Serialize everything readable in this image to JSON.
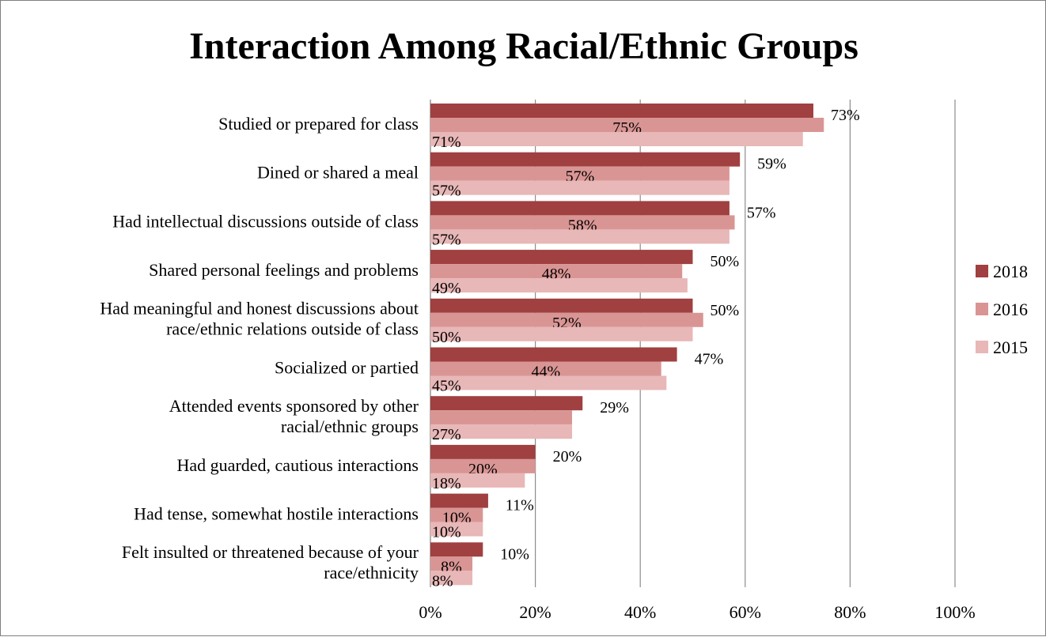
{
  "chart_data": {
    "type": "bar",
    "orientation": "horizontal",
    "title": "Interaction Among Racial/Ethnic Groups",
    "xlabel": "",
    "ylabel": "",
    "xlim": [
      0,
      100
    ],
    "x_ticks": [
      "0%",
      "20%",
      "40%",
      "60%",
      "80%",
      "100%"
    ],
    "grid": true,
    "legend_position": "right",
    "categories": [
      [
        "Studied or prepared for class"
      ],
      [
        "Dined or shared a meal"
      ],
      [
        "Had intellectual discussions outside of class"
      ],
      [
        "Shared personal feelings and problems"
      ],
      [
        "Had meaningful and honest discussions about",
        "race/ethnic relations outside of class"
      ],
      [
        "Socialized or partied"
      ],
      [
        "Attended events sponsored by other",
        "racial/ethnic groups"
      ],
      [
        "Had guarded, cautious interactions"
      ],
      [
        "Had tense, somewhat hostile interactions"
      ],
      [
        "Felt insulted or threatened because of your",
        "race/ethnicity"
      ]
    ],
    "series": [
      {
        "name": "2018",
        "color": "#a04040",
        "values": [
          73,
          59,
          57,
          50,
          50,
          47,
          29,
          20,
          11,
          10
        ],
        "labels": [
          "73%",
          "59%",
          "57%",
          "50%",
          "50%",
          "47%",
          "29%",
          "20%",
          "11%",
          "10%"
        ]
      },
      {
        "name": "2016",
        "color": "#d99594",
        "values": [
          75,
          57,
          58,
          48,
          52,
          44,
          27,
          20,
          10,
          8
        ],
        "labels": [
          "75%",
          "57%",
          "58%",
          "48%",
          "52%",
          "44%",
          "",
          "20%",
          "10%",
          "8%"
        ]
      },
      {
        "name": "2015",
        "color": "#e8b7b7",
        "values": [
          71,
          57,
          57,
          49,
          50,
          45,
          27,
          18,
          10,
          8
        ],
        "labels": [
          "71%",
          "57%",
          "57%",
          "49%",
          "50%",
          "45%",
          "27%",
          "18%",
          "10%",
          "8%"
        ]
      }
    ]
  }
}
